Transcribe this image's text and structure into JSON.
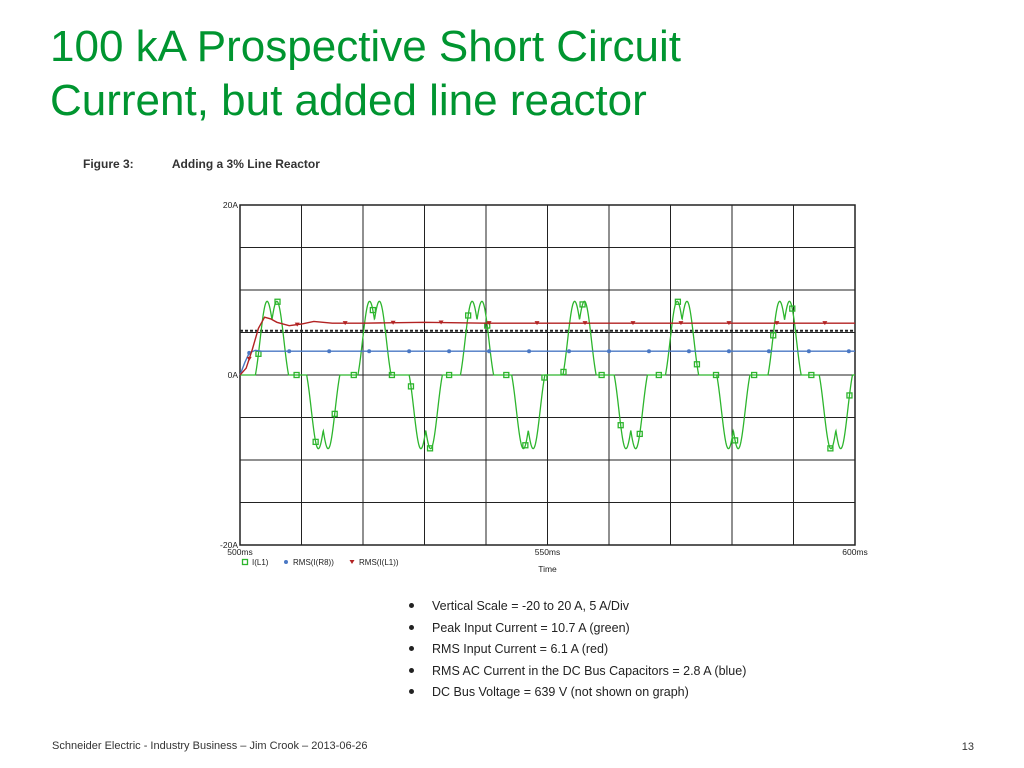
{
  "slide": {
    "title_line1": "100 kA Prospective Short Circuit",
    "title_line2": "Current, but added line reactor"
  },
  "figure": {
    "number": "Figure 3:",
    "caption": "Adding a 3% Line Reactor"
  },
  "bullets": [
    "Vertical Scale = -20 to 20 A, 5 A/Div",
    "Peak Input Current = 10.7 A (green)",
    "RMS Input Current = 6.1 A (red)",
    "RMS AC Current in the DC Bus Capacitors = 2.8 A (blue)",
    "DC Bus Voltage = 639 V (not shown on graph)"
  ],
  "footer": {
    "left": "Schneider Electric - Industry Business – Jim Crook – 2013-06-26",
    "page": "13"
  },
  "chart_data": {
    "type": "line",
    "title": "",
    "xlabel": "Time",
    "ylabel": "",
    "xlim": [
      500,
      600
    ],
    "ylim": [
      -20,
      20
    ],
    "x_tick_labels": [
      {
        "value": 500,
        "label": "500ms"
      },
      {
        "value": 550,
        "label": "550ms"
      },
      {
        "value": 600,
        "label": "600ms"
      }
    ],
    "y_tick_labels": [
      {
        "value": 20,
        "label": "20A"
      },
      {
        "value": 0,
        "label": "0A"
      },
      {
        "value": -20,
        "label": "-20A"
      }
    ],
    "grid": true,
    "x_grid_step": 10,
    "y_grid_step": 5,
    "dashed_reference_level": 5.2,
    "legend_position": "bottom-left",
    "series": [
      {
        "name": "I(L1)",
        "color": "#2db52d",
        "marker": "square",
        "peak": 10.7,
        "period_ms": 16.67,
        "first_pulse_ms": 502.5,
        "pulse_width_ms": 5.4,
        "note_values": "alternating positive/negative double-hump current pulses"
      },
      {
        "name": "RMS(I(R8))",
        "color": "#4a78c4",
        "marker": "circle",
        "x": [
          500,
          500.8,
          501.5,
          502.5,
          503.5,
          600
        ],
        "values": [
          0,
          1.5,
          2.6,
          2.9,
          2.8,
          2.8
        ]
      },
      {
        "name": "RMS(I(L1))",
        "color": "#b22222",
        "marker": "triangle",
        "x": [
          500,
          501,
          502,
          503,
          504,
          505,
          506,
          508,
          510,
          512,
          515,
          520,
          530,
          540,
          550,
          560,
          580,
          600
        ],
        "values": [
          0,
          0.8,
          3,
          5.5,
          6.8,
          6.6,
          6.2,
          5.8,
          6.0,
          6.3,
          6.1,
          6.1,
          6.2,
          6.1,
          6.1,
          6.1,
          6.1,
          6.1
        ]
      }
    ]
  }
}
